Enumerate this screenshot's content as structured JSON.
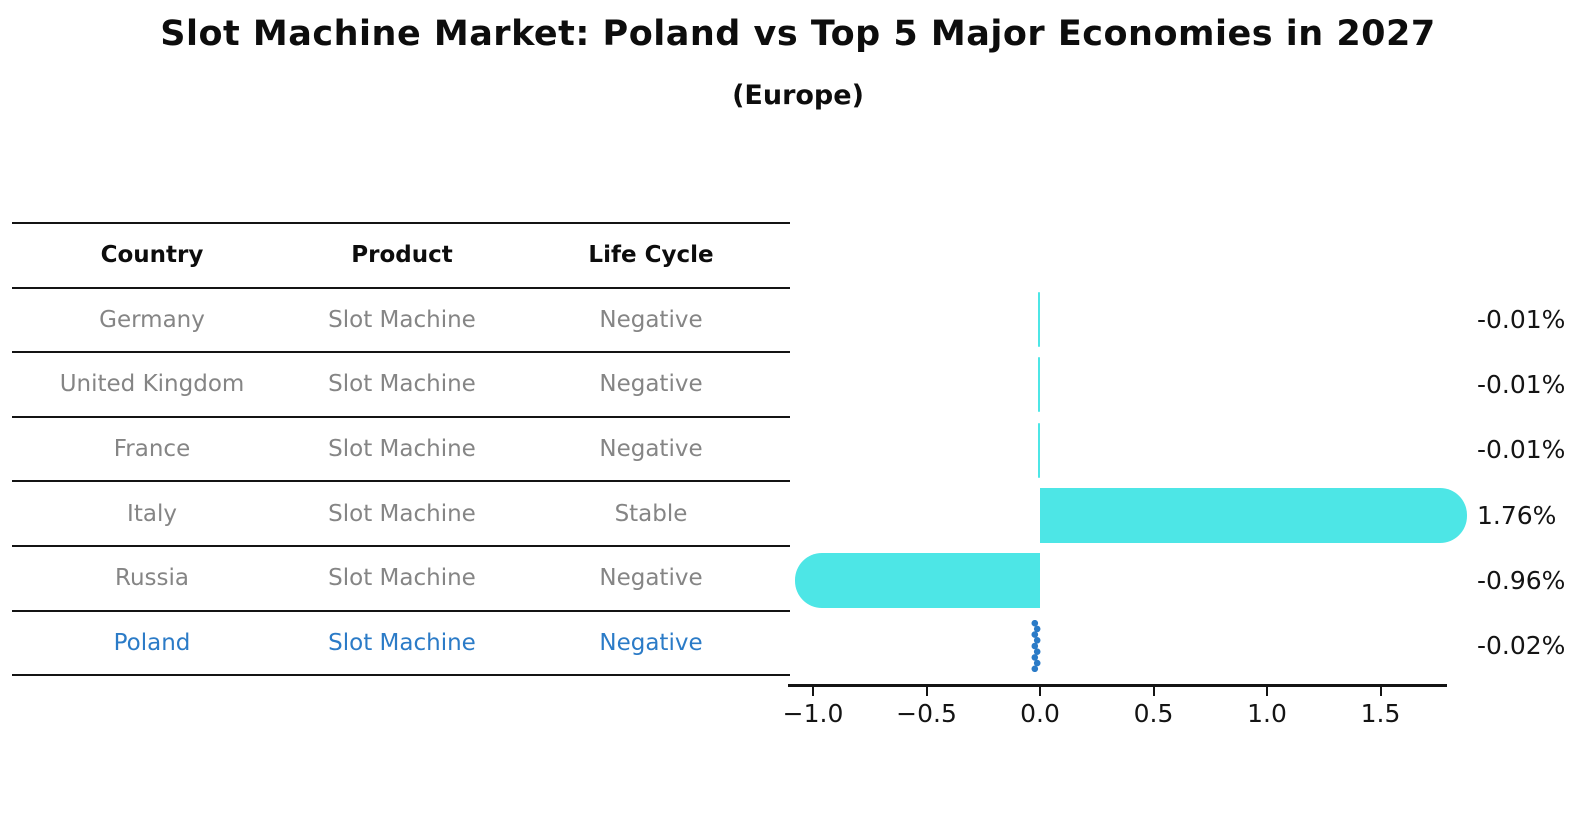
{
  "title": "Slot Machine Market: Poland vs Top 5 Major Economies in 2027",
  "subtitle": "(Europe)",
  "table": {
    "headers": [
      "Country",
      "Product",
      "Life Cycle"
    ],
    "rows": [
      {
        "country": "Germany",
        "product": "Slot Machine",
        "life_cycle": "Negative",
        "highlight": false
      },
      {
        "country": "United Kingdom",
        "product": "Slot Machine",
        "life_cycle": "Negative",
        "highlight": false
      },
      {
        "country": "France",
        "product": "Slot Machine",
        "life_cycle": "Negative",
        "highlight": false
      },
      {
        "country": "Italy",
        "product": "Slot Machine",
        "life_cycle": "Stable",
        "highlight": false
      },
      {
        "country": "Russia",
        "product": "Slot Machine",
        "life_cycle": "Negative",
        "highlight": false
      },
      {
        "country": "Poland",
        "product": "Slot Machine",
        "life_cycle": "Negative",
        "highlight": true
      }
    ]
  },
  "chart_data": {
    "type": "bar",
    "orientation": "horizontal",
    "categories": [
      "Germany",
      "United Kingdom",
      "France",
      "Italy",
      "Russia",
      "Poland"
    ],
    "values": [
      -0.01,
      -0.01,
      -0.01,
      1.76,
      -0.96,
      -0.02
    ],
    "value_labels": [
      "-0.01%",
      "-0.01%",
      "-0.01%",
      "1.76%",
      "-0.96%",
      "-0.02%"
    ],
    "x_tick_values": [
      -1.0,
      -0.5,
      0.0,
      0.5,
      1.0,
      1.5
    ],
    "x_tick_labels": [
      "−1.0",
      "−0.5",
      "0.0",
      "0.5",
      "1.0",
      "1.5"
    ],
    "xlim": [
      -1.11,
      1.79
    ],
    "title": "Slot Machine Market: Poland vs Top 5 Major Economies in 2027",
    "subtitle": "(Europe)",
    "xlabel": "",
    "ylabel": "",
    "grid": false,
    "legend": false,
    "bar_color": "#4DE6E6",
    "highlight_color": "#2B7BC7",
    "highlight_index": 5
  },
  "colors": {
    "bar": "#4DE6E6",
    "highlight_blue": "#2B7BC7",
    "table_text_gray": "#858585",
    "text_black": "#0d0d0d"
  }
}
